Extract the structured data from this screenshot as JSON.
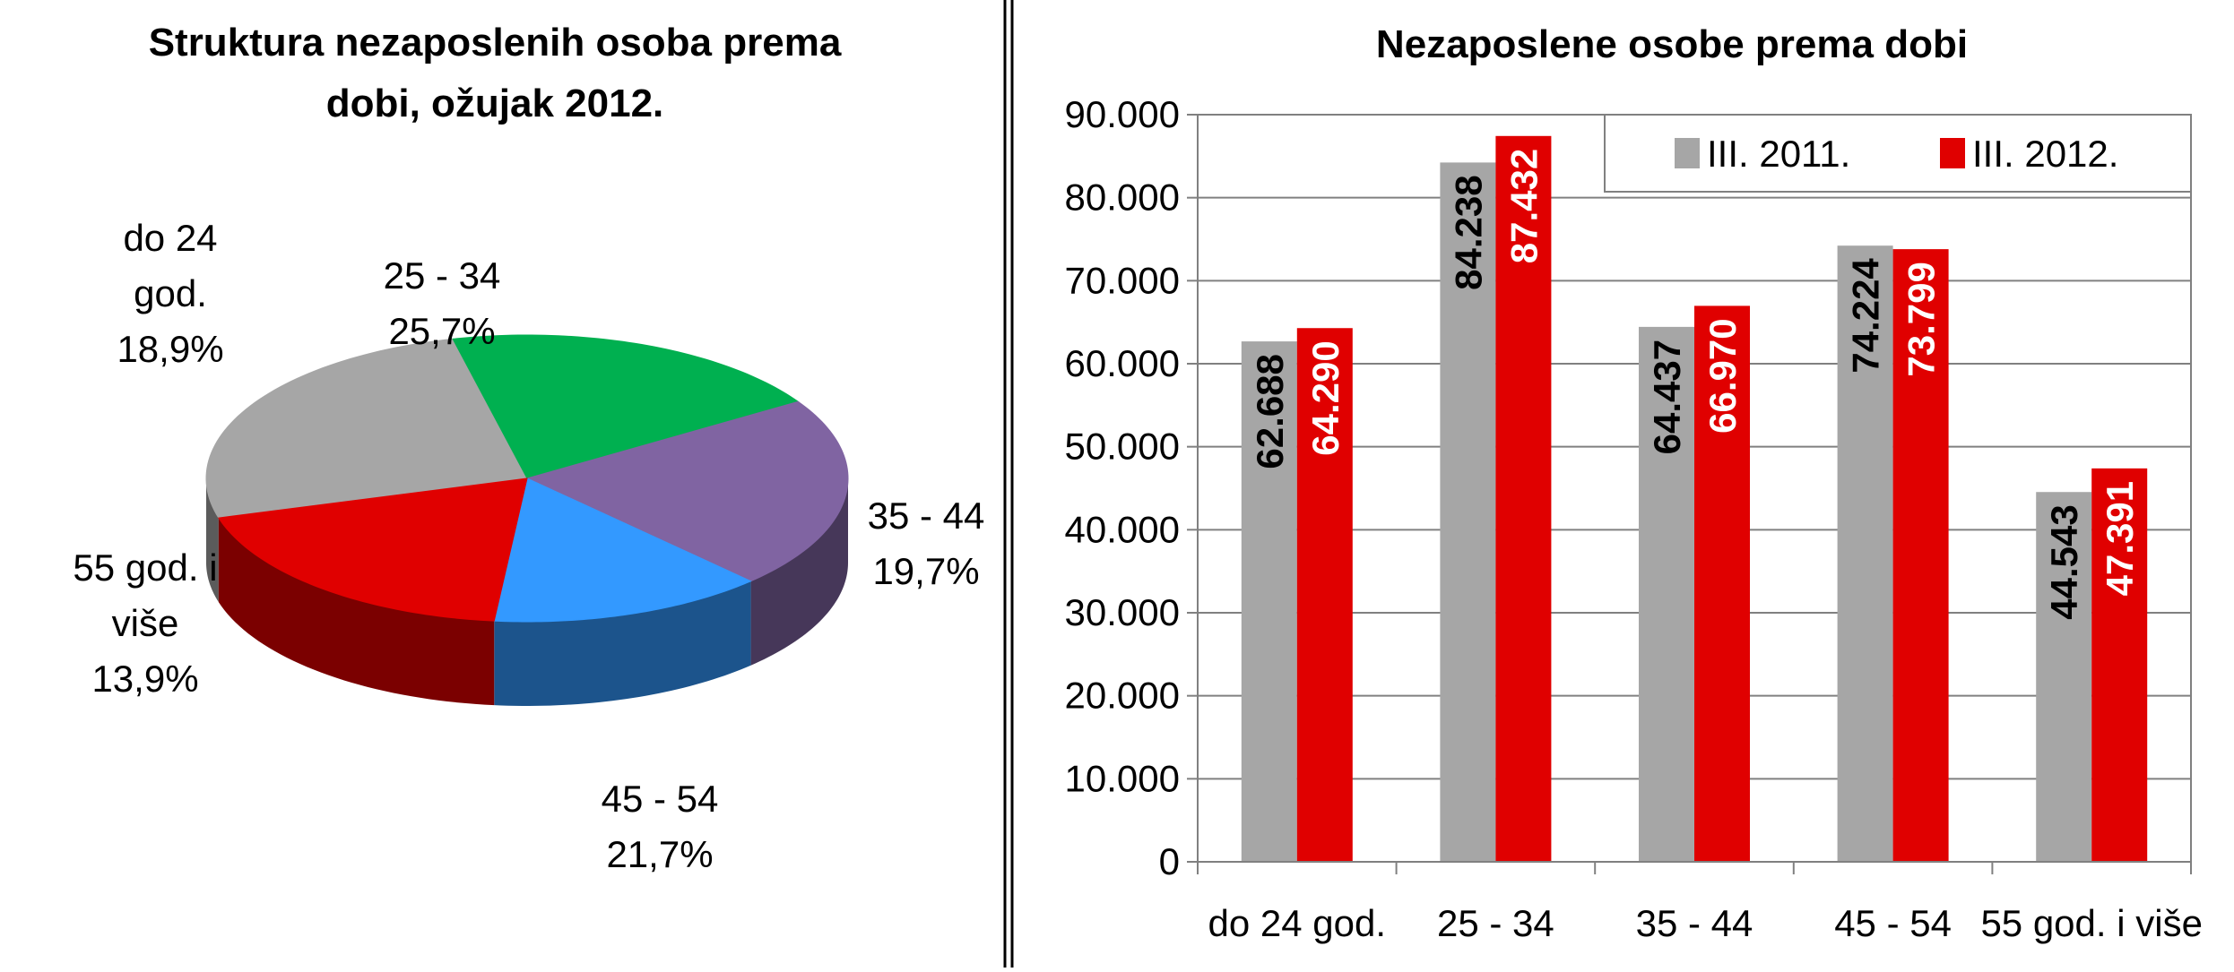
{
  "chart_data": [
    {
      "type": "pie",
      "title": "Struktura nezaposlenih osoba prema",
      "subtitle": "dobi,  ožujak 2012.",
      "slices": [
        {
          "label": "25 - 34",
          "value": 25.7,
          "value_label": "25,7%",
          "color": "#A6A6A6"
        },
        {
          "label": "35 - 44",
          "value": 19.7,
          "value_label": "19,7%",
          "color": "#00B050"
        },
        {
          "label": "45 - 54",
          "value": 21.7,
          "value_label": "21,7%",
          "color": "#8064A2"
        },
        {
          "label": "55 god. i više",
          "value": 13.9,
          "value_label": "13,9%",
          "color": "#3399FF"
        },
        {
          "label": "do 24 god.",
          "value": 18.9,
          "value_label": "18,9%",
          "color": "#E00000"
        }
      ]
    },
    {
      "type": "bar",
      "title": "Nezaposlene osobe prema dobi",
      "categories": [
        "do 24 god.",
        "25 - 34",
        "35 - 44",
        "45 - 54",
        "55 god. i više"
      ],
      "series": [
        {
          "name": "III. 2011.",
          "color": "#A6A6A6",
          "values": [
            62688,
            84238,
            64437,
            74224,
            44543
          ],
          "labels": [
            "62.688",
            "84.238",
            "64.437",
            "74.224",
            "44.543"
          ]
        },
        {
          "name": "III. 2012.",
          "color": "#E00000",
          "values": [
            64290,
            87432,
            66970,
            73799,
            47391
          ],
          "labels": [
            "64.290",
            "87.432",
            "66.970",
            "73.799",
            "47.391"
          ]
        }
      ],
      "ylim": [
        0,
        90000
      ],
      "yticks": [
        0,
        10000,
        20000,
        30000,
        40000,
        50000,
        60000,
        70000,
        80000,
        90000
      ],
      "ytick_labels": [
        "0",
        "10.000",
        "20.000",
        "30.000",
        "40.000",
        "50.000",
        "60.000",
        "70.000",
        "80.000",
        "90.000"
      ],
      "grid": true,
      "legend": "top-right"
    }
  ]
}
